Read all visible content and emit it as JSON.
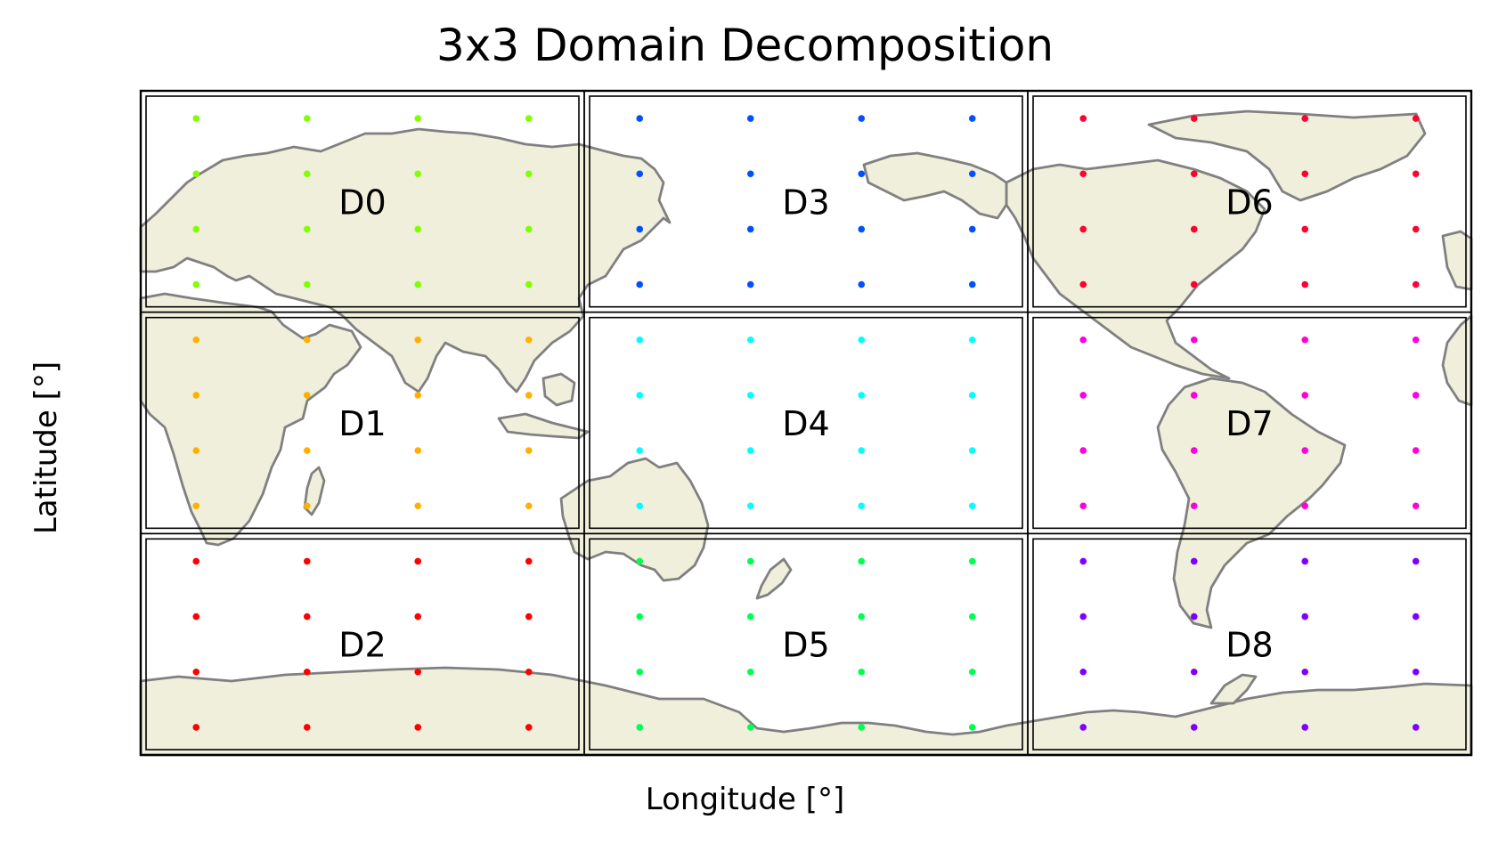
{
  "chart_data": {
    "type": "scatter",
    "title": "3x3 Domain Decomposition",
    "xlabel": "Longitude [°]",
    "ylabel": "Latitude [°]",
    "xlim": [
      -180,
      180
    ],
    "ylim": [
      -90,
      90
    ],
    "projection": "PlateCarree, central_longitude=180",
    "grid": false,
    "legend": "none",
    "domains": [
      {
        "name": "D0",
        "color": "#80ff00",
        "lon_range": [
          0,
          120
        ],
        "lat_range": [
          30,
          90
        ],
        "lons": [
          15,
          45,
          75,
          105
        ],
        "lats": [
          82.5,
          67.5,
          52.5,
          37.5
        ]
      },
      {
        "name": "D1",
        "color": "#ffb000",
        "lon_range": [
          0,
          120
        ],
        "lat_range": [
          -30,
          30
        ],
        "lons": [
          15,
          45,
          75,
          105
        ],
        "lats": [
          22.5,
          7.5,
          -7.5,
          -22.5
        ]
      },
      {
        "name": "D2",
        "color": "#ff0000",
        "lon_range": [
          0,
          120
        ],
        "lat_range": [
          -90,
          -30
        ],
        "lons": [
          15,
          45,
          75,
          105
        ],
        "lats": [
          -37.5,
          -52.5,
          -67.5,
          -82.5
        ]
      },
      {
        "name": "D3",
        "color": "#0050ff",
        "lon_range": [
          120,
          240
        ],
        "lat_range": [
          30,
          90
        ],
        "lons": [
          135,
          165,
          195,
          225
        ],
        "lats": [
          82.5,
          67.5,
          52.5,
          37.5
        ]
      },
      {
        "name": "D4",
        "color": "#00ffff",
        "lon_range": [
          120,
          240
        ],
        "lat_range": [
          -30,
          30
        ],
        "lons": [
          135,
          165,
          195,
          225
        ],
        "lats": [
          22.5,
          7.5,
          -7.5,
          -22.5
        ]
      },
      {
        "name": "D5",
        "color": "#00ff50",
        "lon_range": [
          120,
          240
        ],
        "lat_range": [
          -90,
          -30
        ],
        "lons": [
          135,
          165,
          195,
          225
        ],
        "lats": [
          -37.5,
          -52.5,
          -67.5,
          -82.5
        ]
      },
      {
        "name": "D6",
        "color": "#ff0030",
        "lon_range": [
          240,
          360
        ],
        "lat_range": [
          30,
          90
        ],
        "lons": [
          255,
          285,
          315,
          345
        ],
        "lats": [
          82.5,
          67.5,
          52.5,
          37.5
        ]
      },
      {
        "name": "D7",
        "color": "#ff00dd",
        "lon_range": [
          240,
          360
        ],
        "lat_range": [
          -30,
          30
        ],
        "lons": [
          255,
          285,
          315,
          345
        ],
        "lats": [
          22.5,
          7.5,
          -7.5,
          -22.5
        ]
      },
      {
        "name": "D8",
        "color": "#8000ff",
        "lon_range": [
          240,
          360
        ],
        "lat_range": [
          -90,
          -30
        ],
        "lons": [
          255,
          285,
          315,
          345
        ],
        "lats": [
          -37.5,
          -52.5,
          -67.5,
          -82.5
        ]
      }
    ]
  },
  "colors": {
    "land": "#efefdb",
    "coastline": "#808080",
    "frame": "#000000"
  }
}
